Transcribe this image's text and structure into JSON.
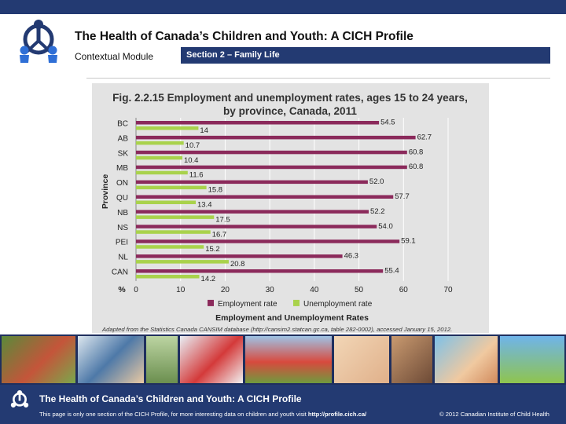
{
  "header": {
    "title": "The Health of Canada’s Children and Youth: A CICH Profile",
    "module": "Contextual Module",
    "section": "Section 2 – Family Life"
  },
  "chart_data": {
    "type": "bar",
    "orientation": "horizontal",
    "title_line1": "Fig. 2.2.15  Employment and unemployment rates, ages 15 to 24 years,",
    "title_line2": "by province, Canada, 2011",
    "categories": [
      "BC",
      "AB",
      "SK",
      "MB",
      "ON",
      "QU",
      "NB",
      "NS",
      "PEI",
      "NL",
      "CAN"
    ],
    "series": [
      {
        "name": "Employment rate",
        "color": "#8b2a5b",
        "values": [
          54.5,
          62.7,
          60.8,
          60.8,
          52.0,
          57.7,
          52.2,
          54.0,
          59.1,
          46.3,
          55.4
        ],
        "labels": [
          "54.5",
          "62.7",
          "60.8",
          "60.8",
          "52.0",
          "57.7",
          "52.2",
          "54.0",
          "59.1",
          "46.3",
          "55.4"
        ]
      },
      {
        "name": "Unemployment rate",
        "color": "#a9d24c",
        "values": [
          14,
          10.7,
          10.4,
          11.6,
          15.8,
          13.4,
          17.5,
          16.7,
          15.2,
          20.8,
          14.2
        ],
        "labels": [
          "14",
          "10.7",
          "10.4",
          "11.6",
          "15.8",
          "13.4",
          "17.5",
          "16.7",
          "15.2",
          "20.8",
          "14.2"
        ]
      }
    ],
    "ylabel": "Province",
    "xlabel": "Employment and Unemployment Rates",
    "x_unit_label": "%",
    "xlim": [
      0,
      70
    ],
    "xticks": [
      "0",
      "10",
      "20",
      "30",
      "40",
      "50",
      "60",
      "70"
    ],
    "grid": true,
    "legend_position": "bottom",
    "source": "Adapted from the Statistics Canada CANSIM database (http://cansim2.statcan.gc.ca, table 282-0002), accessed January 15, 2012."
  },
  "footer": {
    "title": "The Health of Canada’s Children and Youth: A CICH Profile",
    "note": "This page is only one section of the CICH Profile, for more interesting data on children and youth visit ",
    "link": "http://profile.cich.ca/",
    "copyright": "© 2012 Canadian Institute of Child Health"
  }
}
